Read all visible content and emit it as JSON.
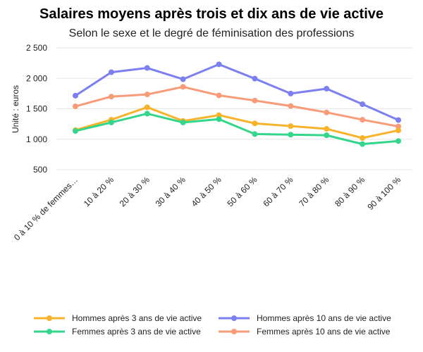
{
  "chart_data": {
    "type": "line",
    "title": "Salaires moyens après trois et dix ans de vie active",
    "subtitle": "Selon le sexe et le degré de féminisation des professions",
    "xlabel": "",
    "ylabel": "Unité : euros",
    "ylim": [
      500,
      2500
    ],
    "yticks": [
      500,
      1000,
      1500,
      2000,
      2500
    ],
    "ytick_labels": [
      "500",
      "1 000",
      "1 500",
      "2 000",
      "2 500"
    ],
    "grid": true,
    "legend_position": "bottom",
    "categories": [
      "0 à 10 % de femmes…",
      "10 à 20 %",
      "20 à 30 %",
      "30 à 40 %",
      "40 à 50 %",
      "50 à 60 %",
      "60 à 70 %",
      "70 à 80 %",
      "80 à 90 %",
      "90 à 100 %"
    ],
    "series": [
      {
        "name": "Hommes après 3 ans de vie active",
        "color": "#f7b32b",
        "values": [
          1150,
          1320,
          1525,
          1300,
          1395,
          1260,
          1215,
          1170,
          1020,
          1145
        ]
      },
      {
        "name": "Hommes après 10 ans de vie active",
        "color": "#7b7ff0",
        "values": [
          1715,
          2100,
          2170,
          1985,
          2230,
          1995,
          1750,
          1830,
          1575,
          1315
        ]
      },
      {
        "name": "Femmes après 3 ans de vie active",
        "color": "#34d68c",
        "values": [
          1135,
          1275,
          1420,
          1275,
          1330,
          1085,
          1075,
          1065,
          920,
          970
        ]
      },
      {
        "name": "Femmes après 10 ans de vie active",
        "color": "#f89b78",
        "values": [
          1540,
          1700,
          1735,
          1860,
          1720,
          1635,
          1545,
          1440,
          1320,
          1210
        ]
      }
    ]
  }
}
